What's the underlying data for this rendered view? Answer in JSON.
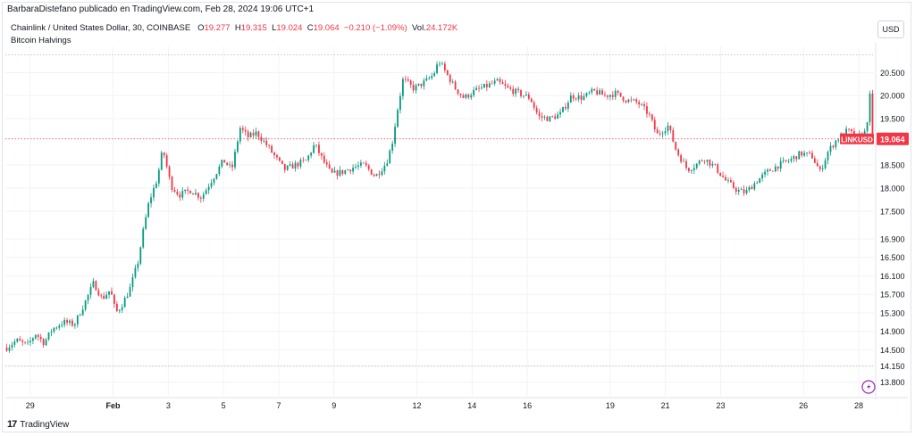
{
  "publisher_line": "BarbaraDistefano publicado en TradingView.com, Feb 28, 2024 19:06 UTC+1",
  "legend": {
    "symbol": "Chainlink / United States Dollar, 30, COINBASE",
    "o_label": "O",
    "o": "19.277",
    "h_label": "H",
    "h": "19.315",
    "l_label": "L",
    "l": "19.024",
    "c_label": "C",
    "c": "19.064",
    "change": "−0.210 (−1.09%)",
    "vol_label": "Vol.",
    "vol": "24.172K"
  },
  "sub_indicator": "Bitcoin Halvings",
  "currency_button": "USD",
  "last_price_label": "LINKUSD",
  "last_price": "19.064",
  "footer_brand": "TradingView",
  "colors": {
    "up": "#089981",
    "down": "#f23645",
    "last": "#f23645"
  },
  "chart_data": {
    "type": "candlestick",
    "symbol": "LINKUSD",
    "interval": "30",
    "y_ticks": [
      20.5,
      20.0,
      19.5,
      18.5,
      18.0,
      17.5,
      16.9,
      16.5,
      16.1,
      15.7,
      15.3,
      14.9,
      14.5,
      14.15,
      13.8
    ],
    "y_tick_labels": [
      "20.500",
      "20.000",
      "19.500",
      "18.500",
      "18.000",
      "17.500",
      "16.900",
      "16.500",
      "16.100",
      "15.700",
      "15.300",
      "14.900",
      "14.500",
      "14.150",
      "13.800"
    ],
    "ylim": [
      13.62,
      20.95
    ],
    "x_ticks": [
      {
        "label": "29",
        "day": 29
      },
      {
        "label": "Feb",
        "day": 32
      },
      {
        "label": "3",
        "day": 34
      },
      {
        "label": "5",
        "day": 36
      },
      {
        "label": "7",
        "day": 38
      },
      {
        "label": "9",
        "day": 40
      },
      {
        "label": "12",
        "day": 43
      },
      {
        "label": "14",
        "day": 45
      },
      {
        "label": "16",
        "day": 47
      },
      {
        "label": "19",
        "day": 50
      },
      {
        "label": "21",
        "day": 52
      },
      {
        "label": "23",
        "day": 54
      },
      {
        "label": "26",
        "day": 57
      },
      {
        "label": "28",
        "day": 59
      }
    ],
    "xlim_days": [
      28.1,
      59.55
    ],
    "price_path": [
      {
        "day": 28.15,
        "price": 14.55
      },
      {
        "day": 28.5,
        "price": 14.7
      },
      {
        "day": 28.9,
        "price": 14.6
      },
      {
        "day": 29.2,
        "price": 14.85
      },
      {
        "day": 29.5,
        "price": 14.65
      },
      {
        "day": 29.8,
        "price": 14.95
      },
      {
        "day": 30.2,
        "price": 15.1
      },
      {
        "day": 30.6,
        "price": 15.05
      },
      {
        "day": 31.0,
        "price": 15.55
      },
      {
        "day": 31.3,
        "price": 15.95
      },
      {
        "day": 31.6,
        "price": 15.6
      },
      {
        "day": 31.9,
        "price": 15.8
      },
      {
        "day": 32.1,
        "price": 15.3
      },
      {
        "day": 32.3,
        "price": 15.45
      },
      {
        "day": 32.6,
        "price": 15.8
      },
      {
        "day": 32.9,
        "price": 16.4
      },
      {
        "day": 33.1,
        "price": 17.1
      },
      {
        "day": 33.3,
        "price": 17.7
      },
      {
        "day": 33.6,
        "price": 18.2
      },
      {
        "day": 33.8,
        "price": 18.85
      },
      {
        "day": 34.1,
        "price": 18.05
      },
      {
        "day": 34.4,
        "price": 17.85
      },
      {
        "day": 34.8,
        "price": 17.95
      },
      {
        "day": 35.2,
        "price": 17.8
      },
      {
        "day": 35.6,
        "price": 18.2
      },
      {
        "day": 36.0,
        "price": 18.6
      },
      {
        "day": 36.3,
        "price": 18.4
      },
      {
        "day": 36.6,
        "price": 19.3
      },
      {
        "day": 36.9,
        "price": 19.1
      },
      {
        "day": 37.2,
        "price": 19.2
      },
      {
        "day": 37.6,
        "price": 18.9
      },
      {
        "day": 37.9,
        "price": 18.65
      },
      {
        "day": 38.2,
        "price": 18.4
      },
      {
        "day": 38.6,
        "price": 18.5
      },
      {
        "day": 39.0,
        "price": 18.6
      },
      {
        "day": 39.3,
        "price": 18.95
      },
      {
        "day": 39.6,
        "price": 18.6
      },
      {
        "day": 39.9,
        "price": 18.3
      },
      {
        "day": 40.3,
        "price": 18.35
      },
      {
        "day": 40.7,
        "price": 18.45
      },
      {
        "day": 41.1,
        "price": 18.5
      },
      {
        "day": 41.5,
        "price": 18.25
      },
      {
        "day": 41.9,
        "price": 18.55
      },
      {
        "day": 42.1,
        "price": 18.95
      },
      {
        "day": 42.3,
        "price": 19.7
      },
      {
        "day": 42.5,
        "price": 20.35
      },
      {
        "day": 42.9,
        "price": 20.15
      },
      {
        "day": 43.3,
        "price": 20.3
      },
      {
        "day": 43.6,
        "price": 20.45
      },
      {
        "day": 43.8,
        "price": 20.75
      },
      {
        "day": 44.1,
        "price": 20.45
      },
      {
        "day": 44.4,
        "price": 20.15
      },
      {
        "day": 44.7,
        "price": 19.95
      },
      {
        "day": 45.1,
        "price": 20.1
      },
      {
        "day": 45.5,
        "price": 20.2
      },
      {
        "day": 45.9,
        "price": 20.3
      },
      {
        "day": 46.3,
        "price": 20.15
      },
      {
        "day": 46.7,
        "price": 20.05
      },
      {
        "day": 47.1,
        "price": 19.95
      },
      {
        "day": 47.4,
        "price": 19.55
      },
      {
        "day": 47.8,
        "price": 19.5
      },
      {
        "day": 48.2,
        "price": 19.6
      },
      {
        "day": 48.6,
        "price": 20.0
      },
      {
        "day": 49.0,
        "price": 19.95
      },
      {
        "day": 49.4,
        "price": 20.1
      },
      {
        "day": 49.8,
        "price": 20.0
      },
      {
        "day": 50.2,
        "price": 20.05
      },
      {
        "day": 50.6,
        "price": 19.9
      },
      {
        "day": 51.0,
        "price": 19.85
      },
      {
        "day": 51.4,
        "price": 19.6
      },
      {
        "day": 51.7,
        "price": 19.15
      },
      {
        "day": 52.1,
        "price": 19.35
      },
      {
        "day": 52.4,
        "price": 18.8
      },
      {
        "day": 52.8,
        "price": 18.4
      },
      {
        "day": 53.1,
        "price": 18.5
      },
      {
        "day": 53.4,
        "price": 18.65
      },
      {
        "day": 53.8,
        "price": 18.45
      },
      {
        "day": 54.2,
        "price": 18.15
      },
      {
        "day": 54.6,
        "price": 17.95
      },
      {
        "day": 54.9,
        "price": 17.9
      },
      {
        "day": 55.3,
        "price": 18.15
      },
      {
        "day": 55.7,
        "price": 18.35
      },
      {
        "day": 56.1,
        "price": 18.5
      },
      {
        "day": 56.5,
        "price": 18.6
      },
      {
        "day": 56.9,
        "price": 18.75
      },
      {
        "day": 57.3,
        "price": 18.7
      },
      {
        "day": 57.6,
        "price": 18.35
      },
      {
        "day": 57.9,
        "price": 18.8
      },
      {
        "day": 58.2,
        "price": 19.05
      },
      {
        "day": 58.6,
        "price": 19.25
      },
      {
        "day": 58.9,
        "price": 19.1
      },
      {
        "day": 59.2,
        "price": 19.15
      },
      {
        "day": 59.35,
        "price": 19.6
      },
      {
        "day": 59.45,
        "price": 20.3
      },
      {
        "day": 59.5,
        "price": 19.064
      }
    ],
    "reference_lines": [
      {
        "price": 20.88,
        "style": "dotted",
        "color": "#b2b5be"
      },
      {
        "price": 14.15,
        "style": "dotted",
        "color": "#b2b5be"
      },
      {
        "price": 19.064,
        "style": "dotted",
        "color": "#f23645"
      }
    ],
    "grid": true,
    "legend_position": "top-left"
  }
}
